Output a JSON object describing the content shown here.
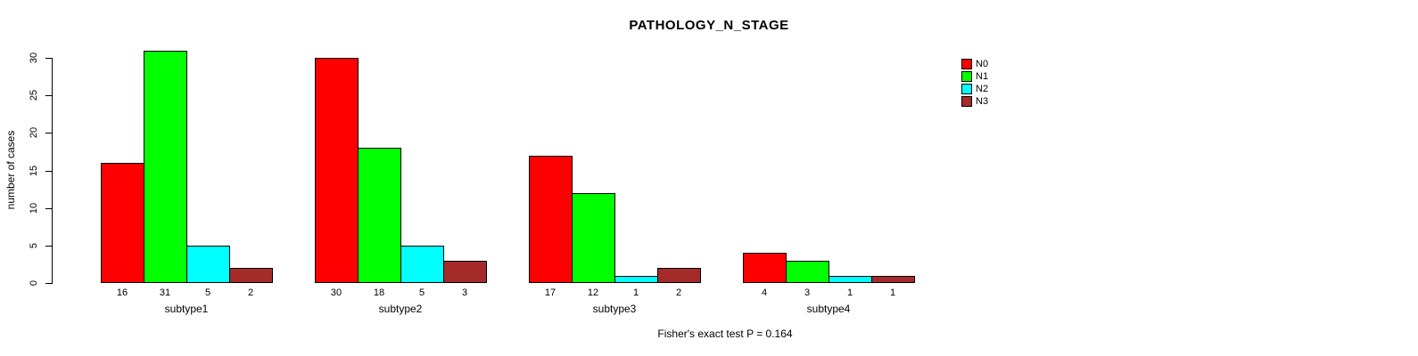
{
  "chart_data": {
    "type": "bar",
    "title": "PATHOLOGY_N_STAGE",
    "xlabel": "",
    "ylabel": "number of cases",
    "ylim": [
      0,
      30
    ],
    "yticks": [
      0,
      5,
      10,
      15,
      20,
      25,
      30
    ],
    "grid": false,
    "legend_position": "top-right",
    "categories": [
      "subtype1",
      "subtype2",
      "subtype3",
      "subtype4"
    ],
    "series": [
      {
        "name": "N0",
        "color": "#FF0000",
        "values": [
          16,
          30,
          17,
          4
        ]
      },
      {
        "name": "N1",
        "color": "#00FF00",
        "values": [
          31,
          18,
          12,
          3
        ]
      },
      {
        "name": "N2",
        "color": "#00FFFF",
        "values": [
          5,
          5,
          1,
          1
        ]
      },
      {
        "name": "N3",
        "color": "#A52A2A",
        "values": [
          2,
          3,
          2,
          1
        ]
      }
    ],
    "bar_value_labels": true,
    "annotation": "Fisher's exact test P = 0.164"
  },
  "colors": {
    "axis": "#000000",
    "background": "#FFFFFF",
    "text": "#000000"
  }
}
